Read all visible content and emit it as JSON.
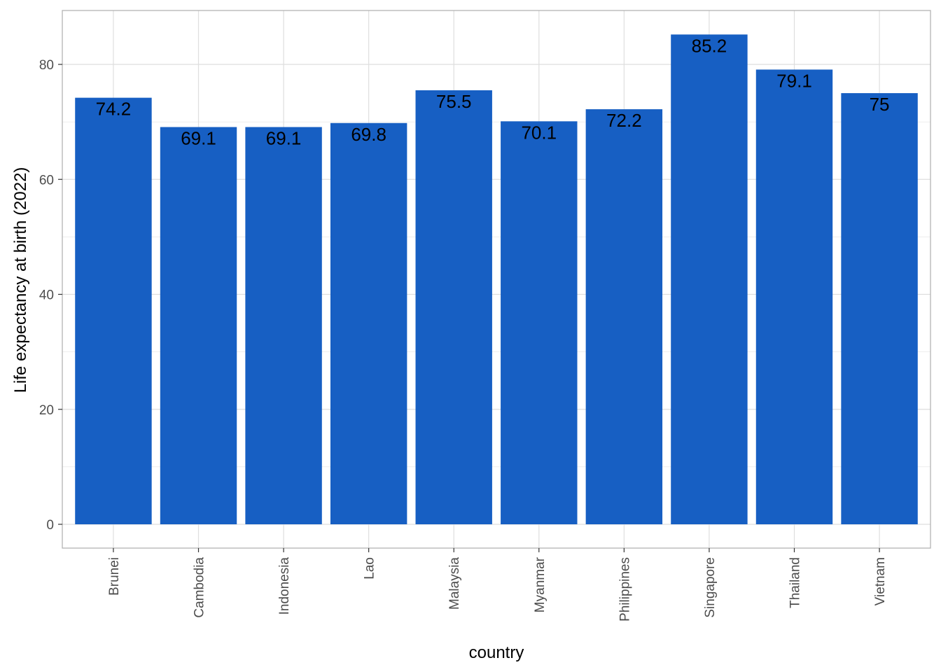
{
  "chart_data": {
    "type": "bar",
    "categories": [
      "Brunei",
      "Cambodia",
      "Indonesia",
      "Lao",
      "Malaysia",
      "Myanmar",
      "Philippines",
      "Singapore",
      "Thailand",
      "Vietnam"
    ],
    "values": [
      74.2,
      69.1,
      69.1,
      69.8,
      75.5,
      70.1,
      72.2,
      85.2,
      79.1,
      75
    ],
    "value_labels": [
      "74.2",
      "69.1",
      "69.1",
      "69.8",
      "75.5",
      "70.1",
      "72.2",
      "85.2",
      "79.1",
      "75"
    ],
    "xlabel": "country",
    "ylabel": "Life expectancy at birth (2022)",
    "ylim": [
      0,
      90
    ],
    "yticks": [
      0,
      20,
      40,
      60,
      80
    ],
    "grid": true,
    "bar_color": "#175fc3",
    "gridline_color": "#dedede",
    "panel_border_color": "#b3b3b3"
  }
}
